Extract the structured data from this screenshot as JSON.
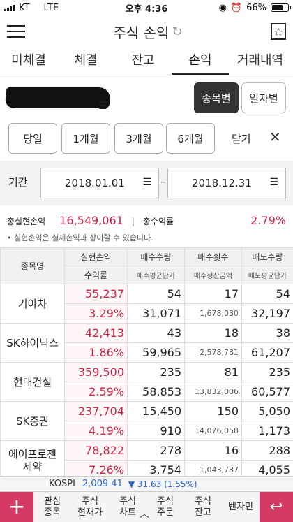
{
  "status": {
    "carrier": "KT",
    "network": "LTE",
    "time": "오후 4:36",
    "battery": "66%"
  },
  "header": {
    "title": "주식 손익",
    "refresh_icon": "refresh-icon",
    "menu_icon": "hamburger-icon",
    "star_icon": "star-icon"
  },
  "tabs": [
    "미체결",
    "체결",
    "잔고",
    "손익",
    "거래내역"
  ],
  "active_tab": "손익",
  "view_toggle": {
    "by_stock": "종목별",
    "by_date": "일자별"
  },
  "period": {
    "today": "당일",
    "m1": "1개월",
    "m3": "3개월",
    "m6": "6개월",
    "close": "닫기"
  },
  "date_range": {
    "label": "기간",
    "start": "2018.01.01",
    "end": "2018.12.31"
  },
  "summary": {
    "realized_label": "총실현손익",
    "realized_value": "16,549,061",
    "rate_label": "총수익률",
    "rate_value": "2.79%",
    "note": "• 실현손익은 실제손익과 상이할 수 있습니다."
  },
  "table": {
    "headers_top": [
      "종목명",
      "실현손익",
      "매수수량",
      "매수횟수",
      "매도수량"
    ],
    "headers_bottom": [
      "수익률",
      "매수평균단가",
      "매수정산금액",
      "매도평균단가"
    ],
    "rows": [
      {
        "name": "기아차",
        "pnl": "55,237",
        "rate": "3.29%",
        "buy_qty": "54",
        "buy_avg": "31,071",
        "buy_cnt": "17",
        "buy_amt": "1,678,030",
        "sell_qty": "54",
        "sell_avg": "32,197"
      },
      {
        "name": "SK하이닉스",
        "pnl": "42,413",
        "rate": "1.86%",
        "buy_qty": "43",
        "buy_avg": "59,965",
        "buy_cnt": "18",
        "buy_amt": "2,578,781",
        "sell_qty": "38",
        "sell_avg": "61,207"
      },
      {
        "name": "현대건설",
        "pnl": "359,500",
        "rate": "2.59%",
        "buy_qty": "235",
        "buy_avg": "58,853",
        "buy_cnt": "81",
        "buy_amt": "13,832,006",
        "sell_qty": "235",
        "sell_avg": "60,577"
      },
      {
        "name": "SK증권",
        "pnl": "237,704",
        "rate": "4.19%",
        "buy_qty": "15,450",
        "buy_avg": "910",
        "buy_cnt": "150",
        "buy_amt": "14,076,058",
        "sell_qty": "5,050",
        "sell_avg": "1,173"
      },
      {
        "name": "에이프로젠\n제약",
        "pnl": "78,822",
        "rate": "7.26%",
        "buy_qty": "278",
        "buy_avg": "3,754",
        "buy_cnt": "16",
        "buy_amt": "1,043,787",
        "sell_qty": "288",
        "sell_avg": "4,055"
      }
    ]
  },
  "ticker": {
    "index": "KOSPI",
    "value": "2,009.41",
    "change": "▼ 31.63 (1.55%)"
  },
  "bottom_nav": [
    "관심\n종목",
    "주식\n현재가",
    "주식\n차트",
    "주식\n주문",
    "주식\n잔고",
    "벤자민"
  ],
  "colors": {
    "accent": "#d43a64",
    "positive": "#c8264a",
    "negative": "#2a64c7"
  }
}
